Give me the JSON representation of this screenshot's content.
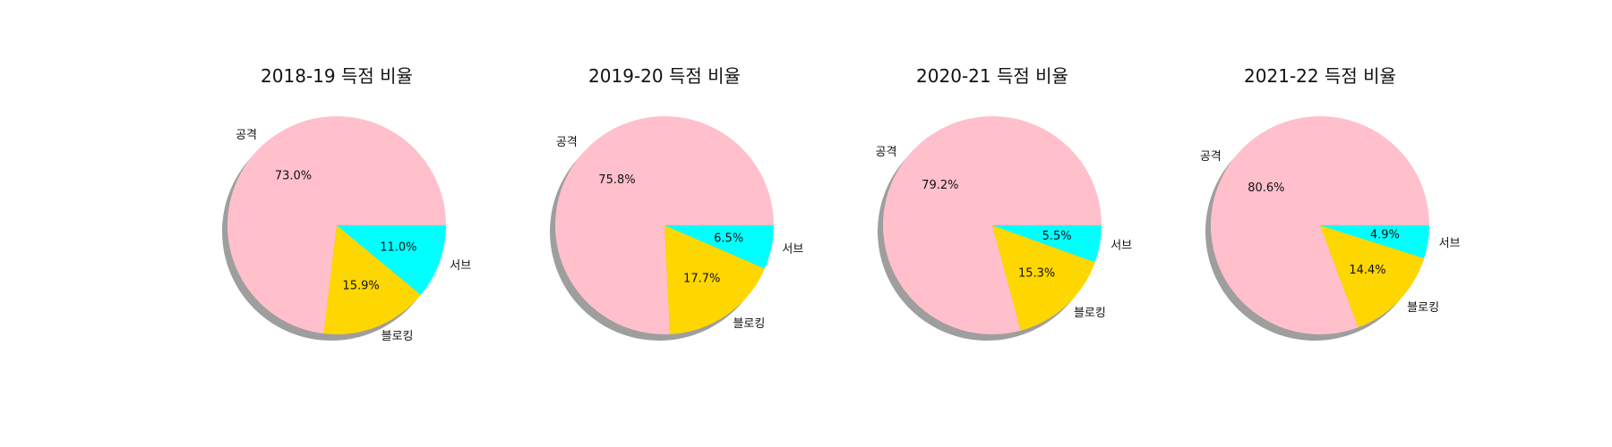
{
  "chart_data": [
    {
      "type": "pie",
      "title": "2018-19 득점 비율",
      "categories": [
        "공격",
        "블로킹",
        "서브"
      ],
      "values": [
        73.0,
        15.9,
        11.0
      ],
      "percent_labels": [
        "73.0%",
        "15.9%",
        "11.0%"
      ],
      "colors": [
        "#ffc0cb",
        "#ffd700",
        "#00ffff"
      ],
      "shadow": true,
      "start_angle": 0,
      "direction": "counterclockwise",
      "legend": "none"
    },
    {
      "type": "pie",
      "title": "2019-20 득점 비율",
      "categories": [
        "공격",
        "블로킹",
        "서브"
      ],
      "values": [
        75.8,
        17.7,
        6.5
      ],
      "percent_labels": [
        "75.8%",
        "17.7%",
        "6.5%"
      ],
      "colors": [
        "#ffc0cb",
        "#ffd700",
        "#00ffff"
      ],
      "shadow": true,
      "start_angle": 0,
      "direction": "counterclockwise",
      "legend": "none"
    },
    {
      "type": "pie",
      "title": "2020-21 득점 비율",
      "categories": [
        "공격",
        "블로킹",
        "서브"
      ],
      "values": [
        79.2,
        15.3,
        5.5
      ],
      "percent_labels": [
        "79.2%",
        "15.3%",
        "5.5%"
      ],
      "colors": [
        "#ffc0cb",
        "#ffd700",
        "#00ffff"
      ],
      "shadow": true,
      "start_angle": 0,
      "direction": "counterclockwise",
      "legend": "none"
    },
    {
      "type": "pie",
      "title": "2021-22 득점 비율",
      "categories": [
        "공격",
        "블로킹",
        "서브"
      ],
      "values": [
        80.6,
        14.4,
        4.9
      ],
      "percent_labels": [
        "80.6%",
        "14.4%",
        "4.9%"
      ],
      "colors": [
        "#ffc0cb",
        "#ffd700",
        "#00ffff"
      ],
      "shadow": true,
      "start_angle": 0,
      "direction": "counterclockwise",
      "legend": "none"
    }
  ]
}
